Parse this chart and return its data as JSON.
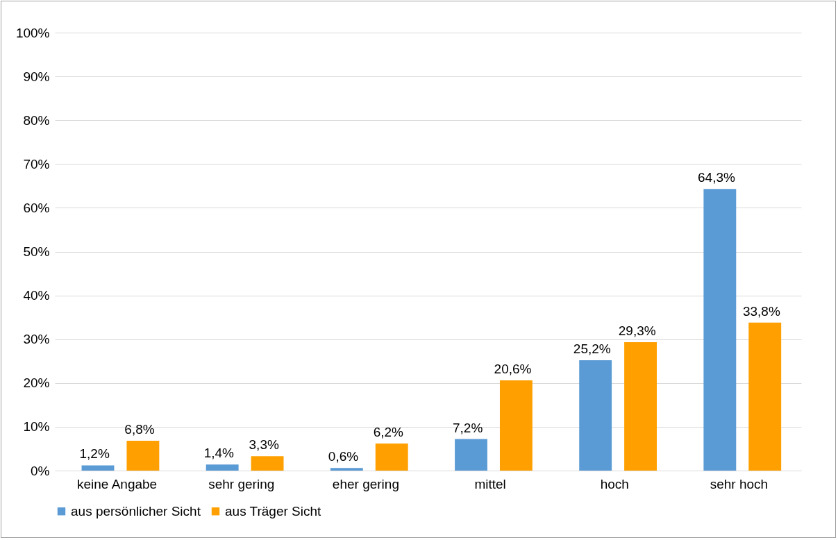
{
  "chart_data": {
    "type": "bar",
    "categories": [
      "keine Angabe",
      "sehr gering",
      "eher gering",
      "mittel",
      "hoch",
      "sehr hoch"
    ],
    "series": [
      {
        "name": "aus persönlicher Sicht",
        "color": "#5b9bd5",
        "values": [
          1.2,
          1.4,
          0.6,
          7.2,
          25.2,
          64.3
        ],
        "value_labels": [
          "1,2%",
          "1,4%",
          "0,6%",
          "7,2%",
          "25,2%",
          "64,3%"
        ]
      },
      {
        "name": "aus Träger Sicht",
        "color": "#ffa000",
        "values": [
          6.8,
          3.3,
          6.2,
          20.6,
          29.3,
          33.8
        ],
        "value_labels": [
          "6,8%",
          "3,3%",
          "6,2%",
          "20,6%",
          "29,3%",
          "33,8%"
        ]
      }
    ],
    "ylim": [
      0,
      100
    ],
    "yticks": [
      {
        "value": 0,
        "label": "0%"
      },
      {
        "value": 10,
        "label": "10%"
      },
      {
        "value": 20,
        "label": "20%"
      },
      {
        "value": 30,
        "label": "30%"
      },
      {
        "value": 40,
        "label": "40%"
      },
      {
        "value": 50,
        "label": "50%"
      },
      {
        "value": 60,
        "label": "60%"
      },
      {
        "value": 70,
        "label": "70%"
      },
      {
        "value": 80,
        "label": "80%"
      },
      {
        "value": 90,
        "label": "90%"
      },
      {
        "value": 100,
        "label": "100%"
      }
    ],
    "grid": "y",
    "legend": "bottom"
  }
}
